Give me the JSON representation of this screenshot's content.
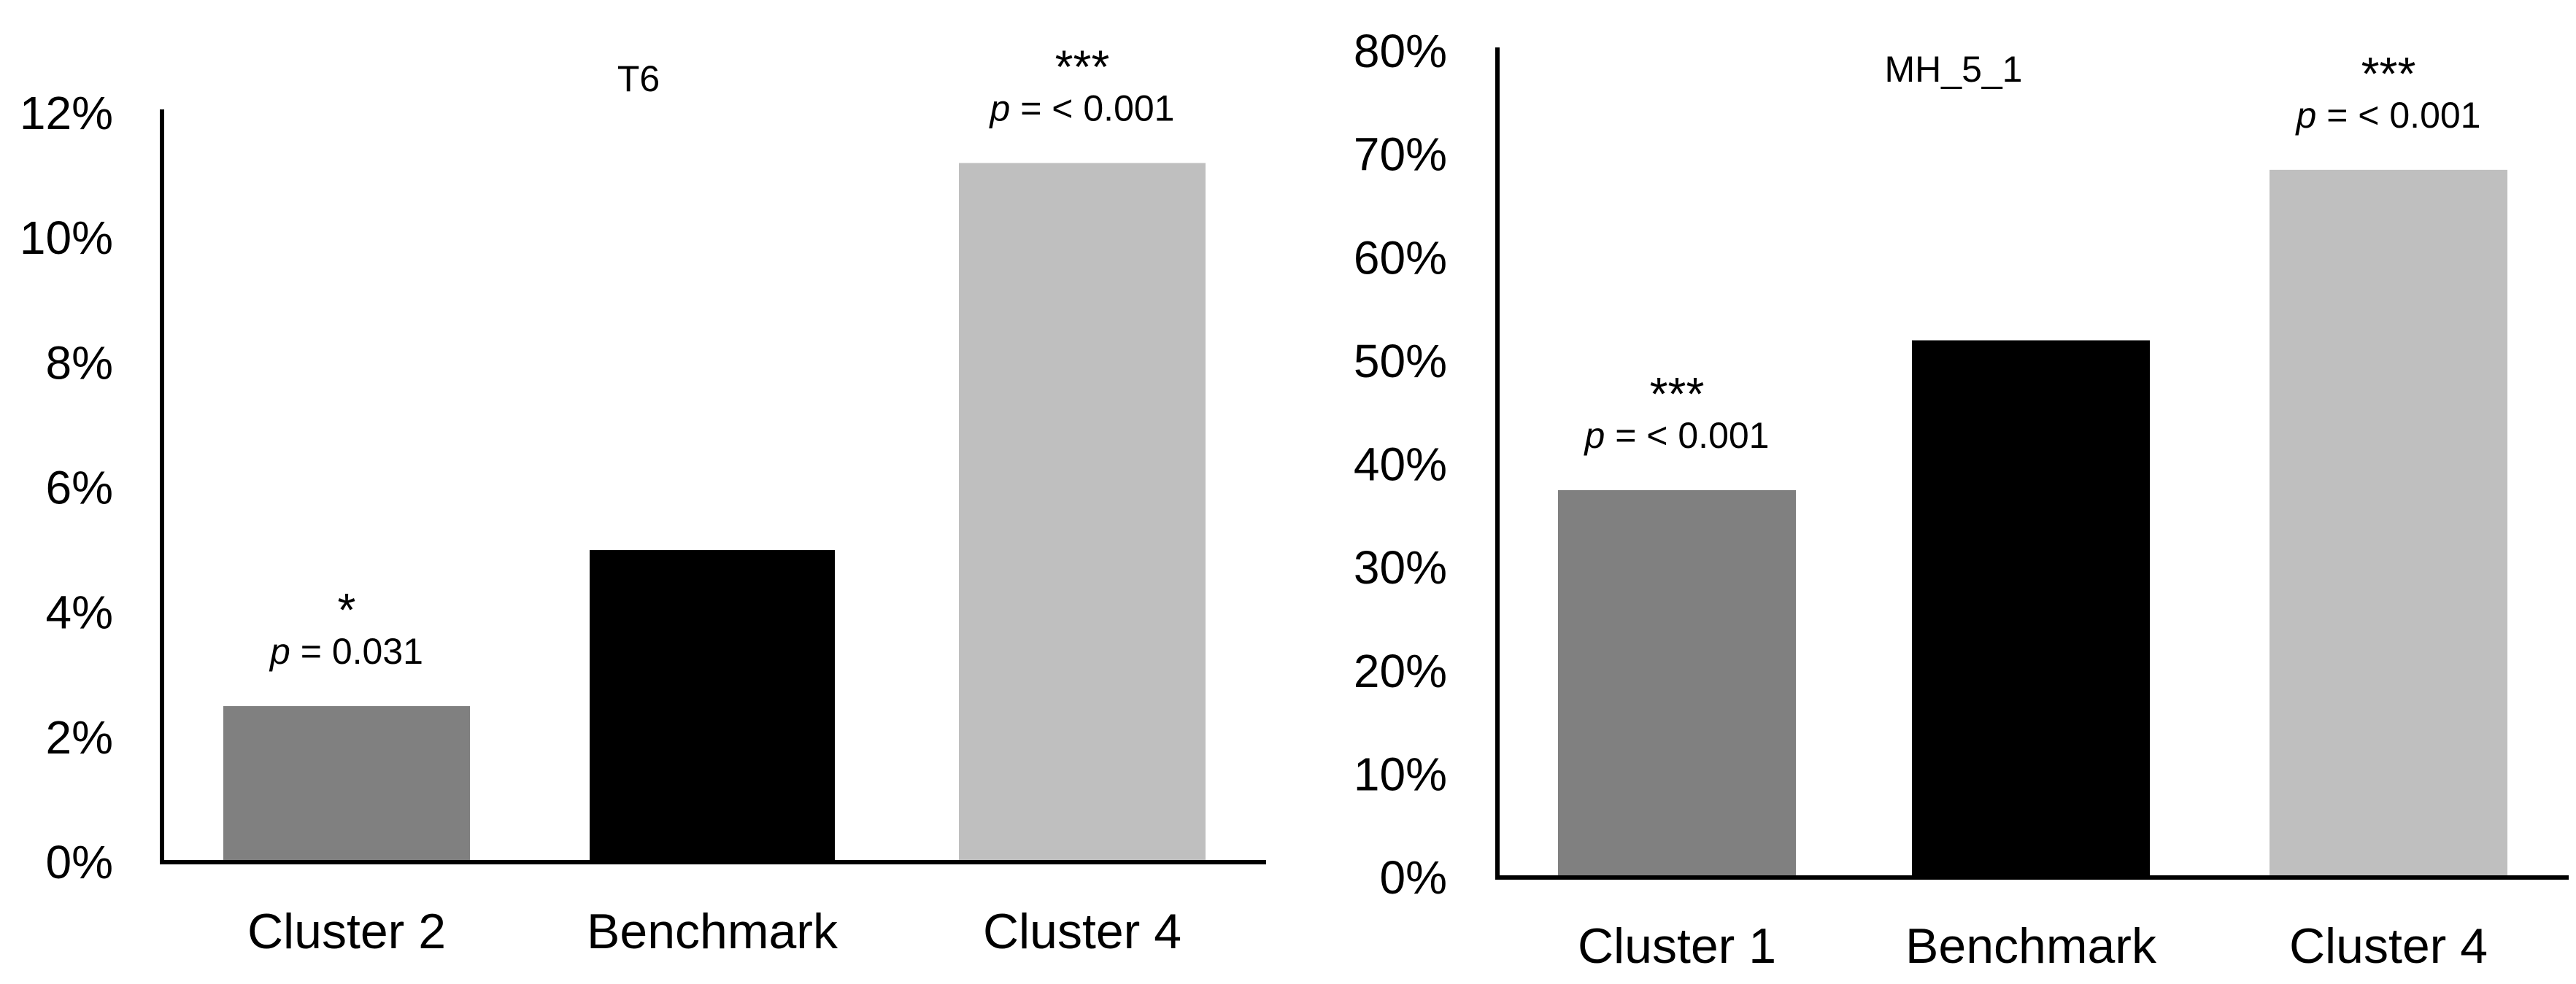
{
  "chart_data": [
    {
      "type": "bar",
      "title": "T6",
      "categories": [
        "Cluster 2",
        "Benchmark",
        "Cluster 4"
      ],
      "values": [
        2.5,
        5.0,
        11.2
      ],
      "ylim": [
        0,
        12
      ],
      "yticks": [
        "0%",
        "2%",
        "4%",
        "6%",
        "8%",
        "10%",
        "12%"
      ],
      "xlabel": "",
      "ylabel": "",
      "colors": [
        "#808080",
        "#000000",
        "#bfbfbf"
      ],
      "annotations": [
        {
          "stars": "*",
          "p_symbol": "p",
          "p_text": " = 0.031"
        },
        {
          "stars": "",
          "p_symbol": "",
          "p_text": ""
        },
        {
          "stars": "***",
          "p_symbol": "p",
          "p_text": " = < 0.001"
        }
      ]
    },
    {
      "type": "bar",
      "title": "MH_5_1",
      "categories": [
        "Cluster 1",
        "Benchmark",
        "Cluster 4"
      ],
      "values": [
        37.5,
        52.0,
        68.5
      ],
      "ylim": [
        0,
        80
      ],
      "yticks": [
        "0%",
        "10%",
        "20%",
        "30%",
        "40%",
        "50%",
        "60%",
        "70%",
        "80%"
      ],
      "xlabel": "",
      "ylabel": "",
      "colors": [
        "#808080",
        "#000000",
        "#bfbfbf"
      ],
      "annotations": [
        {
          "stars": "***",
          "p_symbol": "p",
          "p_text": " = < 0.001"
        },
        {
          "stars": "",
          "p_symbol": "",
          "p_text": ""
        },
        {
          "stars": "***",
          "p_symbol": "p",
          "p_text": " = < 0.001"
        }
      ]
    }
  ]
}
